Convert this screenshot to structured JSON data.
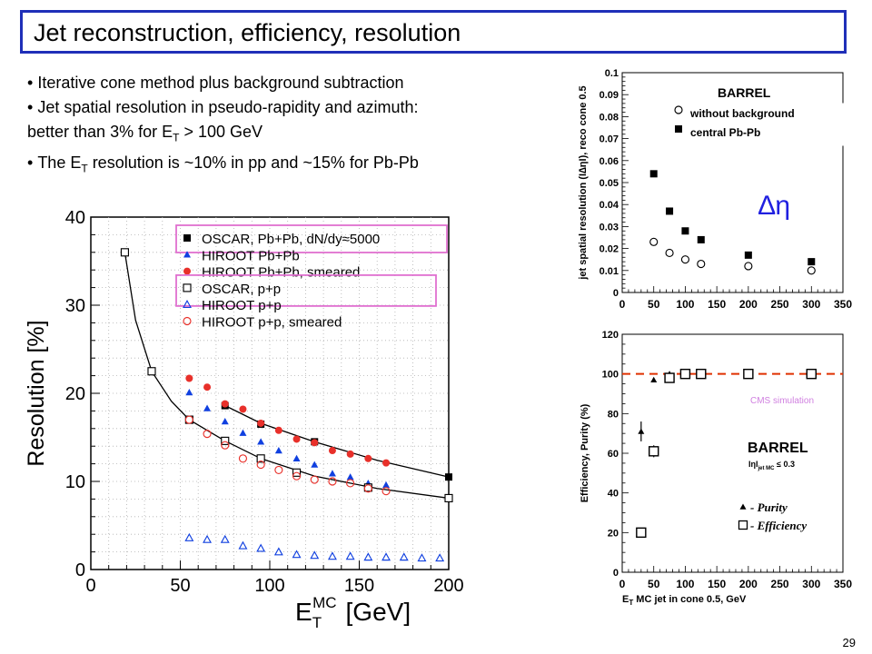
{
  "slide": {
    "title": "Jet reconstruction, efficiency, resolution",
    "bullets": [
      "Iterative cone method plus background subtraction",
      "Jet spatial resolution in pseudo-rapidity and azimuth:",
      "better than 3% for E",
      "T",
      " > 100 GeV",
      "The E",
      "T",
      " resolution is ~10% in pp and ~15% for Pb-Pb"
    ],
    "page_number": "29"
  },
  "chart_data": [
    {
      "type": "scatter",
      "ylabel": "Resolution [%]",
      "xlabel_parts": [
        "E",
        "T",
        "MC",
        "[GeV]"
      ],
      "xlim": [
        0,
        200
      ],
      "ylim": [
        0,
        40
      ],
      "xticks": [
        0,
        50,
        100,
        150,
        200
      ],
      "yticks": [
        0,
        10,
        20,
        30,
        40
      ],
      "grid": true,
      "legend_position": "top-right",
      "series": [
        {
          "name": "OSCAR, Pb+Pb, dN/dy≈5000",
          "marker": "filled-square",
          "color": "#000000",
          "highlighted": true,
          "x": [
            75,
            95,
            125,
            200
          ],
          "y": [
            18.6,
            16.5,
            14.5,
            10.5
          ]
        },
        {
          "name": "HIROOT Pb+Pb",
          "marker": "filled-triangle",
          "color": "#1040e0",
          "x": [
            55,
            65,
            75,
            85,
            95,
            105,
            115,
            125,
            135,
            145,
            155,
            165
          ],
          "y": [
            20.1,
            18.3,
            16.8,
            15.5,
            14.5,
            13.5,
            12.6,
            11.9,
            10.9,
            10.5,
            9.8,
            9.6
          ]
        },
        {
          "name": "HIROOT Pb+Pb, smeared",
          "marker": "filled-circle",
          "color": "#e8302a",
          "x": [
            55,
            65,
            75,
            85,
            95,
            105,
            115,
            125,
            135,
            145,
            155,
            165
          ],
          "y": [
            21.7,
            20.7,
            18.8,
            18.2,
            16.6,
            15.8,
            14.8,
            14.4,
            13.5,
            13.1,
            12.6,
            12.1
          ]
        },
        {
          "name": "OSCAR, p+p",
          "marker": "open-square",
          "color": "#000000",
          "highlighted": true,
          "x": [
            19,
            34,
            55,
            75,
            95,
            115,
            155,
            200
          ],
          "y": [
            36,
            22.5,
            17,
            14.6,
            12.6,
            11,
            9.3,
            8.1
          ]
        },
        {
          "name": "HIROOT p+p",
          "marker": "open-triangle",
          "color": "#1040e0",
          "x": [
            55,
            65,
            75,
            85,
            95,
            105,
            115,
            125,
            135,
            145,
            155,
            165,
            175,
            185,
            195
          ],
          "y": [
            3.6,
            3.4,
            3.4,
            2.7,
            2.4,
            2.0,
            1.7,
            1.6,
            1.5,
            1.5,
            1.4,
            1.4,
            1.4,
            1.3,
            1.3
          ]
        },
        {
          "name": "HIROOT p+p, smeared",
          "marker": "open-circle",
          "color": "#e8302a",
          "x": [
            55,
            65,
            75,
            85,
            95,
            105,
            115,
            125,
            135,
            145,
            155,
            165
          ],
          "y": [
            17.0,
            15.4,
            14.1,
            12.6,
            11.9,
            11.3,
            10.6,
            10.2,
            10.0,
            9.8,
            9.2,
            8.9
          ]
        }
      ],
      "fit_curves": [
        {
          "series": "OSCAR, Pb+Pb, dN/dy≈5000",
          "x": [
            75,
            95,
            125,
            160,
            200
          ],
          "y": [
            18.6,
            16.6,
            14.5,
            12.4,
            10.5
          ]
        },
        {
          "series": "OSCAR, p+p",
          "x": [
            19,
            25,
            34,
            45,
            55,
            75,
            95,
            125,
            160,
            200
          ],
          "y": [
            36,
            28.3,
            22.5,
            19.1,
            17,
            14.6,
            12.6,
            10.6,
            9.2,
            8.1
          ]
        }
      ]
    },
    {
      "type": "scatter",
      "ylabel": "jet spatial resolution (I∆ηI), reco cone 0.5",
      "xlim": [
        0,
        350
      ],
      "ylim": [
        0,
        0.1
      ],
      "xticks": [
        0,
        50,
        100,
        150,
        200,
        250,
        300,
        350
      ],
      "yticks": [
        "0",
        "0.01",
        "0.02",
        "0.03",
        "0.04",
        "0.05",
        "0.06",
        "0.07",
        "0.08",
        "0.09",
        "0.1"
      ],
      "grid": false,
      "annotations": [
        "BARREL",
        "∆η"
      ],
      "legend_position": "top-right",
      "series": [
        {
          "name": "without background",
          "marker": "open-circle",
          "color": "#000000",
          "x": [
            50,
            75,
            100,
            125,
            200,
            300
          ],
          "y": [
            0.023,
            0.018,
            0.015,
            0.013,
            0.012,
            0.01
          ]
        },
        {
          "name": "central Pb-Pb",
          "marker": "filled-square",
          "color": "#000000",
          "x": [
            50,
            75,
            100,
            125,
            200,
            300
          ],
          "y": [
            0.054,
            0.037,
            0.028,
            0.024,
            0.017,
            0.014
          ]
        }
      ]
    },
    {
      "type": "scatter",
      "ylabel": "Efficiency, Purity (%)",
      "xlabel_parts": [
        "E",
        "T",
        " MC jet in cone 0.5, GeV"
      ],
      "xlim": [
        0,
        350
      ],
      "ylim": [
        0,
        120
      ],
      "xticks": [
        0,
        50,
        100,
        150,
        200,
        250,
        300,
        350
      ],
      "yticks": [
        0,
        20,
        40,
        60,
        80,
        100,
        120
      ],
      "grid": false,
      "reference_line": {
        "y": 100,
        "color": "#e03000",
        "style": "dashed"
      },
      "annotations": [
        "CMS simulation",
        "BARREL",
        "IηI",
        "jet MC",
        " ≤ 0.3"
      ],
      "legend_position": "bottom-right",
      "series": [
        {
          "name": "- Purity",
          "marker": "filled-triangle",
          "color": "#000000",
          "x": [
            30,
            50,
            75,
            100,
            125,
            200,
            300
          ],
          "y": [
            71,
            97,
            100,
            100,
            100,
            100,
            100
          ],
          "yerr": [
            5,
            1,
            0,
            0,
            0,
            0,
            0
          ]
        },
        {
          "name": "- Efficiency",
          "marker": "open-square",
          "color": "#000000",
          "x": [
            30,
            50,
            75,
            100,
            125,
            200,
            300
          ],
          "y": [
            20,
            61,
            98,
            100,
            100,
            100,
            100
          ],
          "yerr": [
            0,
            3,
            0,
            0,
            0,
            0,
            0
          ]
        }
      ]
    }
  ]
}
